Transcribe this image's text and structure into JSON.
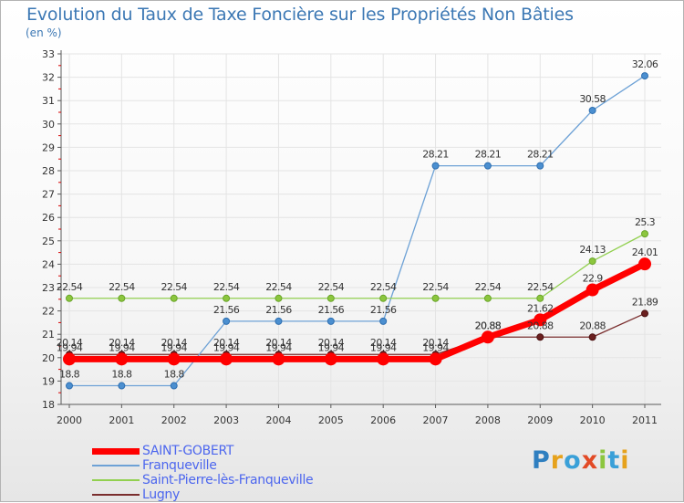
{
  "title": "Evolution du Taux de Taxe Foncière sur les Propriétés Non Bâties",
  "unit_label": "(en %)",
  "brand": {
    "name": "Proxiti",
    "letters": [
      {
        "char": "P",
        "color": "#2f7fc0"
      },
      {
        "char": "r",
        "color": "#e6a21c"
      },
      {
        "char": "o",
        "color": "#3aa0d8"
      },
      {
        "char": "x",
        "color": "#e24a26"
      },
      {
        "char": "i",
        "color": "#8cc63e"
      },
      {
        "char": "t",
        "color": "#3aa0d8"
      },
      {
        "char": "i",
        "color": "#e6a21c"
      }
    ]
  },
  "chart_data": {
    "type": "line",
    "title": "Evolution du Taux de Taxe Foncière sur les Propriétés Non Bâties",
    "ylabel": "(en %)",
    "xlabel": "",
    "ylim": [
      18,
      33
    ],
    "yticks": [
      18,
      19,
      20,
      21,
      22,
      23,
      24,
      25,
      26,
      27,
      28,
      29,
      30,
      31,
      32,
      33
    ],
    "categories": [
      "2000",
      "2001",
      "2002",
      "2003",
      "2004",
      "2005",
      "2006",
      "2007",
      "2008",
      "2009",
      "2010",
      "2011"
    ],
    "series": [
      {
        "name": "Lugny",
        "color": "#7a2e2e",
        "values": [
          20.14,
          20.14,
          20.14,
          20.14,
          20.14,
          20.14,
          20.14,
          20.14,
          20.88,
          20.88,
          20.88,
          21.89
        ],
        "labels": [
          "20.14",
          "20.14",
          "20.14",
          "20.14",
          "20.14",
          "20.14",
          "20.14",
          "20.14",
          "20.88",
          "20.88",
          "20.88",
          "21.89"
        ]
      },
      {
        "name": "Franqueville",
        "color": "#6ea2d6",
        "values": [
          18.8,
          18.8,
          18.8,
          21.56,
          21.56,
          21.56,
          21.56,
          28.21,
          28.21,
          28.21,
          30.58,
          32.06
        ],
        "labels": [
          "18.8",
          "18.8",
          "18.8",
          "21.56",
          "21.56",
          "21.56",
          "21.56",
          "28.21",
          "28.21",
          "28.21",
          "30.58",
          "32.06"
        ]
      },
      {
        "name": "Saint-Pierre-lès-Franqueville",
        "color": "#92d050",
        "values": [
          22.54,
          22.54,
          22.54,
          22.54,
          22.54,
          22.54,
          22.54,
          22.54,
          22.54,
          22.54,
          24.13,
          25.3
        ],
        "labels": [
          "22.54",
          "22.54",
          "22.54",
          "22.54",
          "22.54",
          "22.54",
          "22.54",
          "22.54",
          "22.54",
          "22.54",
          "24.13",
          "25.3"
        ]
      },
      {
        "name": "SAINT-GOBERT",
        "color": "#ff0000",
        "values": [
          19.94,
          19.94,
          19.94,
          19.94,
          19.94,
          19.94,
          19.94,
          19.94,
          20.88,
          21.62,
          22.9,
          24.01
        ],
        "labels": [
          "19.94",
          "19.94",
          "19.94",
          "19.94",
          "19.94",
          "19.94",
          "19.94",
          "19.94",
          "20.88",
          "21.62",
          "22.9",
          "24.01"
        ]
      }
    ],
    "legend": [
      "SAINT-GOBERT",
      "Franqueville",
      "Saint-Pierre-lès-Franqueville",
      "Lugny"
    ],
    "legend_position": "bottom-left"
  }
}
